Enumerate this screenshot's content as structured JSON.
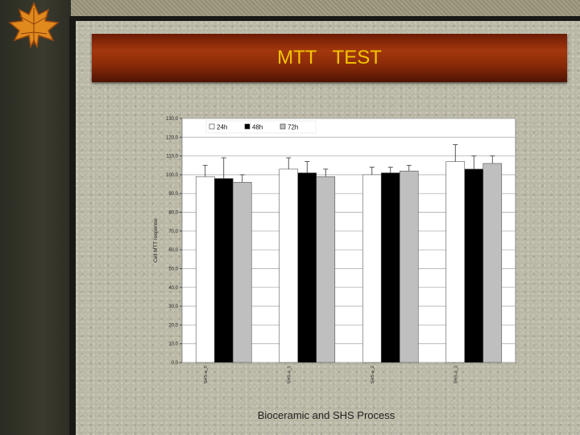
{
  "slide": {
    "title": "MTT   TEST",
    "footer": "Bioceramic and SHS Process"
  },
  "colors": {
    "title_text": "#f2c400",
    "title_bar": "#8a2a08",
    "series_24h": "#ffffff",
    "series_48h": "#000000",
    "series_72h": "#bfbfbf"
  },
  "icons": {
    "corner_decoration": "maple-leaf-icon"
  },
  "chart_data": {
    "type": "bar",
    "title": "",
    "xlabel": "",
    "ylabel": "Cell MTT response",
    "ylim": [
      0,
      130
    ],
    "ytick_step": 10,
    "ytick_labels": [
      "0,0",
      "10,0",
      "20,0",
      "30,0",
      "40,0",
      "50,0",
      "60,0",
      "70,0",
      "80,0",
      "90,0",
      "100,0",
      "110,0",
      "120,0",
      "130,0"
    ],
    "grid": true,
    "legend_position": "top-left",
    "categories": [
      "SHS-a_0",
      "SHS-a_1",
      "SHS-a_2",
      "SHS-a_3"
    ],
    "series": [
      {
        "name": "24h",
        "values": [
          99,
          103,
          100,
          107
        ],
        "errors": [
          6,
          6,
          4,
          9
        ],
        "color": "#ffffff"
      },
      {
        "name": "48h",
        "values": [
          98,
          101,
          101,
          103
        ],
        "errors": [
          11,
          6,
          3,
          7
        ],
        "color": "#000000"
      },
      {
        "name": "72h",
        "values": [
          96,
          99,
          102,
          106
        ],
        "errors": [
          4,
          4,
          3,
          4
        ],
        "color": "#bfbfbf"
      }
    ]
  }
}
